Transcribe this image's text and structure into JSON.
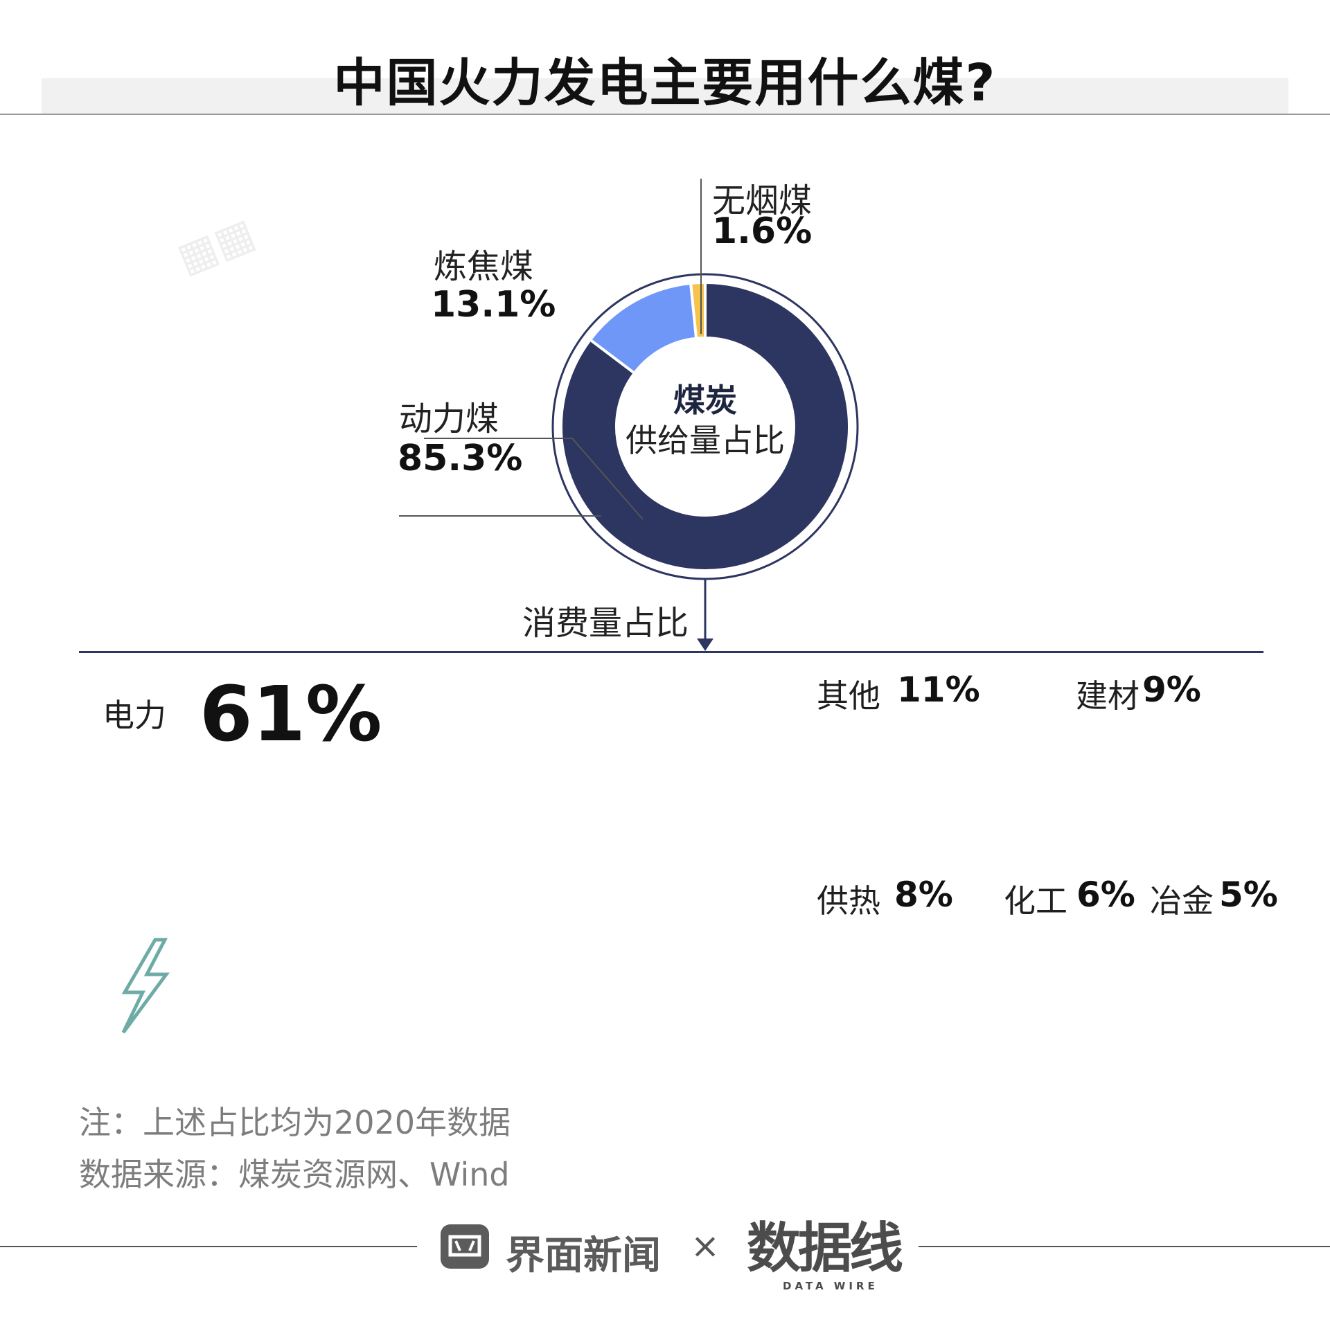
{
  "title": "中国火力发电主要用什么煤?",
  "colors": {
    "thermal_coal": "#2d3561",
    "coking_coal": "#6e97f7",
    "anthracite": "#f5c34e",
    "power": "#6eaba6",
    "other": "#687f7c",
    "building": "#aab5d7",
    "heating": "#d6e0fa",
    "chemical": "#fcca5e",
    "metallurgy": "#e6d3ad"
  },
  "chart_data": [
    {
      "type": "pie",
      "subtype": "donut",
      "title": "煤炭供给量占比",
      "center_label": {
        "line1": "煤炭",
        "line2": "供给量占比"
      },
      "slices": [
        {
          "name": "动力煤",
          "value": 85.3,
          "label": "85.3%",
          "color": "#2d3561"
        },
        {
          "name": "炼焦煤",
          "value": 13.1,
          "label": "13.1%",
          "color": "#6e97f7"
        },
        {
          "name": "无烟煤",
          "value": 1.6,
          "label": "1.6%",
          "color": "#f5c34e"
        }
      ]
    },
    {
      "type": "treemap",
      "title": "消费量占比",
      "items": [
        {
          "name": "电力",
          "value": 61,
          "label": "61%",
          "color": "#6eaba6",
          "icon": "lightning-icon"
        },
        {
          "name": "其他",
          "value": 11,
          "label": "11%",
          "color": "#687f7c",
          "icon": "pipes-icon"
        },
        {
          "name": "建材",
          "value": 9,
          "label": "9%",
          "color": "#aab5d7",
          "icon": "bricks-icon"
        },
        {
          "name": "供热",
          "value": 8,
          "label": "8%",
          "color": "#d6e0fa",
          "icon": "radiator-icon"
        },
        {
          "name": "化工",
          "value": 6,
          "label": "6%",
          "color": "#fcca5e",
          "icon": "flask-icon"
        },
        {
          "name": "冶金",
          "value": 5,
          "label": "5%",
          "color": "#e6d3ad",
          "icon": "steel-ingot-icon"
        }
      ]
    }
  ],
  "note": "注：上述占比均为2020年数据",
  "source": "数据来源：煤炭资源网、Wind",
  "footer": {
    "brand": "界面新闻",
    "times": "×",
    "partner": "数据线",
    "partner_sub": "DATA WIRE"
  }
}
